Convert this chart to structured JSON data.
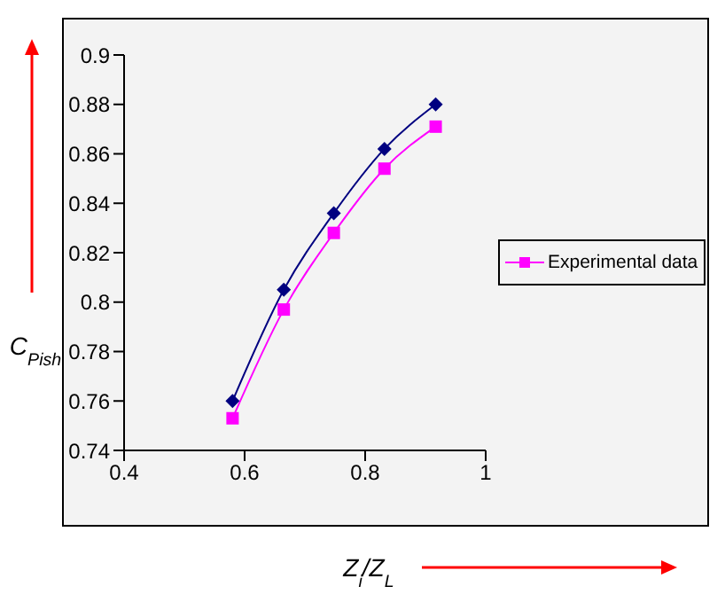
{
  "chart_data": {
    "type": "line",
    "xlabel": "Z$_{i}$/Z$_{L}$",
    "ylabel": "C$_{Pish}$",
    "x": [
      0.58,
      0.665,
      0.748,
      0.832,
      0.917
    ],
    "series": [
      {
        "color": "#000080",
        "marker": "diamond",
        "values": [
          0.76,
          0.805,
          0.836,
          0.862,
          0.88
        ]
      },
      {
        "name": "Experimental data",
        "color": "#ff00ff",
        "marker": "square",
        "values": [
          0.753,
          0.797,
          0.828,
          0.854,
          0.871
        ]
      }
    ],
    "xlim": [
      0.4,
      1
    ],
    "xticks": [
      0.4,
      0.6,
      0.8,
      1
    ],
    "ylim": [
      0.74,
      0.9
    ],
    "yticks": [
      0.74,
      0.76,
      0.78,
      0.8,
      0.82,
      0.84,
      0.86,
      0.88,
      0.9
    ],
    "grid": false,
    "legend": "right"
  }
}
